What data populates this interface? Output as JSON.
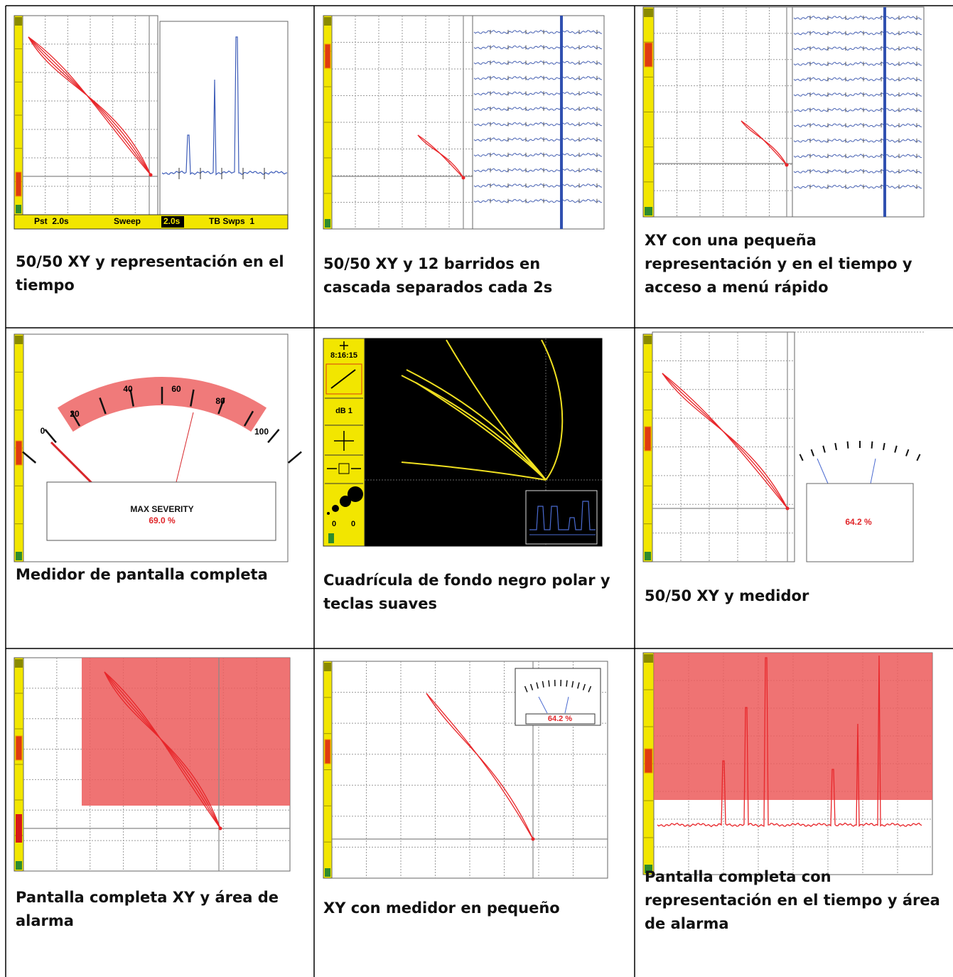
{
  "cells": [
    {
      "caption": "50/50 XY y representación en el tiempo",
      "status": [
        "Pst  2.0s",
        "Sweep",
        "2.0s",
        "TB Swps  1"
      ]
    },
    {
      "caption": "50/50 XY y 12 barridos en cascada separados cada 2s"
    },
    {
      "caption": "XY con una pequeña representación y en el tiempo y acceso a menú rápido"
    },
    {
      "caption": "Medidor de pantalla completa",
      "scale": [
        "0",
        "20",
        "40",
        "60",
        "80",
        "100"
      ],
      "label": "MAX SEVERITY",
      "reading": "69.0 %"
    },
    {
      "caption": "Cuadrícula de fondo negro polar y teclas suaves",
      "clock": "8:16:15",
      "gain": "dB 1",
      "counters": [
        "0",
        "0"
      ]
    },
    {
      "caption": "50/50 XY y medidor",
      "reading": "64.2 %"
    },
    {
      "caption": "Pantalla completa XY y área de alarma"
    },
    {
      "caption": "XY con medidor en pequeño",
      "reading": "64.2 %"
    },
    {
      "caption": "Pantalla completa con representación en el tiempo y área de alarma"
    }
  ]
}
